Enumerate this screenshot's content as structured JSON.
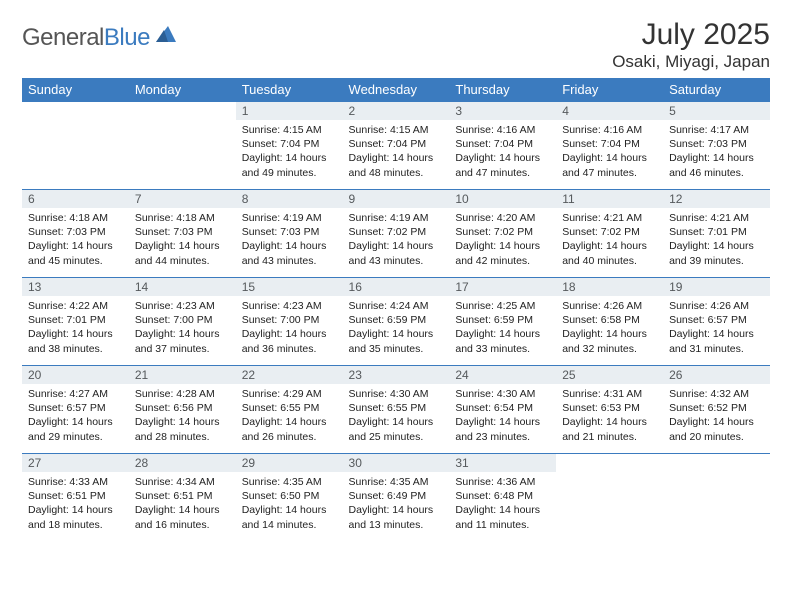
{
  "brand": {
    "name_a": "General",
    "name_b": "Blue"
  },
  "title": "July 2025",
  "location": "Osaki, Miyagi, Japan",
  "colors": {
    "header_bg": "#3b7bbf",
    "row_border": "#3b7bbf",
    "daynum_bg": "#e9eef2"
  },
  "day_headers": [
    "Sunday",
    "Monday",
    "Tuesday",
    "Wednesday",
    "Thursday",
    "Friday",
    "Saturday"
  ],
  "weeks": [
    [
      null,
      null,
      {
        "n": "1",
        "sunrise": "4:15 AM",
        "sunset": "7:04 PM",
        "dhours": "14",
        "dmins": "49"
      },
      {
        "n": "2",
        "sunrise": "4:15 AM",
        "sunset": "7:04 PM",
        "dhours": "14",
        "dmins": "48"
      },
      {
        "n": "3",
        "sunrise": "4:16 AM",
        "sunset": "7:04 PM",
        "dhours": "14",
        "dmins": "47"
      },
      {
        "n": "4",
        "sunrise": "4:16 AM",
        "sunset": "7:04 PM",
        "dhours": "14",
        "dmins": "47"
      },
      {
        "n": "5",
        "sunrise": "4:17 AM",
        "sunset": "7:03 PM",
        "dhours": "14",
        "dmins": "46"
      }
    ],
    [
      {
        "n": "6",
        "sunrise": "4:18 AM",
        "sunset": "7:03 PM",
        "dhours": "14",
        "dmins": "45"
      },
      {
        "n": "7",
        "sunrise": "4:18 AM",
        "sunset": "7:03 PM",
        "dhours": "14",
        "dmins": "44"
      },
      {
        "n": "8",
        "sunrise": "4:19 AM",
        "sunset": "7:03 PM",
        "dhours": "14",
        "dmins": "43"
      },
      {
        "n": "9",
        "sunrise": "4:19 AM",
        "sunset": "7:02 PM",
        "dhours": "14",
        "dmins": "43"
      },
      {
        "n": "10",
        "sunrise": "4:20 AM",
        "sunset": "7:02 PM",
        "dhours": "14",
        "dmins": "42"
      },
      {
        "n": "11",
        "sunrise": "4:21 AM",
        "sunset": "7:02 PM",
        "dhours": "14",
        "dmins": "40"
      },
      {
        "n": "12",
        "sunrise": "4:21 AM",
        "sunset": "7:01 PM",
        "dhours": "14",
        "dmins": "39"
      }
    ],
    [
      {
        "n": "13",
        "sunrise": "4:22 AM",
        "sunset": "7:01 PM",
        "dhours": "14",
        "dmins": "38"
      },
      {
        "n": "14",
        "sunrise": "4:23 AM",
        "sunset": "7:00 PM",
        "dhours": "14",
        "dmins": "37"
      },
      {
        "n": "15",
        "sunrise": "4:23 AM",
        "sunset": "7:00 PM",
        "dhours": "14",
        "dmins": "36"
      },
      {
        "n": "16",
        "sunrise": "4:24 AM",
        "sunset": "6:59 PM",
        "dhours": "14",
        "dmins": "35"
      },
      {
        "n": "17",
        "sunrise": "4:25 AM",
        "sunset": "6:59 PM",
        "dhours": "14",
        "dmins": "33"
      },
      {
        "n": "18",
        "sunrise": "4:26 AM",
        "sunset": "6:58 PM",
        "dhours": "14",
        "dmins": "32"
      },
      {
        "n": "19",
        "sunrise": "4:26 AM",
        "sunset": "6:57 PM",
        "dhours": "14",
        "dmins": "31"
      }
    ],
    [
      {
        "n": "20",
        "sunrise": "4:27 AM",
        "sunset": "6:57 PM",
        "dhours": "14",
        "dmins": "29"
      },
      {
        "n": "21",
        "sunrise": "4:28 AM",
        "sunset": "6:56 PM",
        "dhours": "14",
        "dmins": "28"
      },
      {
        "n": "22",
        "sunrise": "4:29 AM",
        "sunset": "6:55 PM",
        "dhours": "14",
        "dmins": "26"
      },
      {
        "n": "23",
        "sunrise": "4:30 AM",
        "sunset": "6:55 PM",
        "dhours": "14",
        "dmins": "25"
      },
      {
        "n": "24",
        "sunrise": "4:30 AM",
        "sunset": "6:54 PM",
        "dhours": "14",
        "dmins": "23"
      },
      {
        "n": "25",
        "sunrise": "4:31 AM",
        "sunset": "6:53 PM",
        "dhours": "14",
        "dmins": "21"
      },
      {
        "n": "26",
        "sunrise": "4:32 AM",
        "sunset": "6:52 PM",
        "dhours": "14",
        "dmins": "20"
      }
    ],
    [
      {
        "n": "27",
        "sunrise": "4:33 AM",
        "sunset": "6:51 PM",
        "dhours": "14",
        "dmins": "18"
      },
      {
        "n": "28",
        "sunrise": "4:34 AM",
        "sunset": "6:51 PM",
        "dhours": "14",
        "dmins": "16"
      },
      {
        "n": "29",
        "sunrise": "4:35 AM",
        "sunset": "6:50 PM",
        "dhours": "14",
        "dmins": "14"
      },
      {
        "n": "30",
        "sunrise": "4:35 AM",
        "sunset": "6:49 PM",
        "dhours": "14",
        "dmins": "13"
      },
      {
        "n": "31",
        "sunrise": "4:36 AM",
        "sunset": "6:48 PM",
        "dhours": "14",
        "dmins": "11"
      },
      null,
      null
    ]
  ],
  "labels": {
    "sunrise_prefix": "Sunrise: ",
    "sunset_prefix": "Sunset: ",
    "daylight_prefix": "Daylight: ",
    "hours_word": " hours",
    "and_word": "and ",
    "minutes_word": " minutes."
  }
}
